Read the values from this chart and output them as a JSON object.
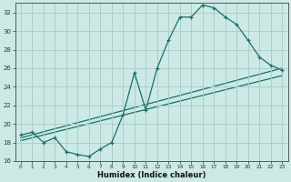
{
  "xlabel": "Humidex (Indice chaleur)",
  "bg_color": "#cce9e5",
  "grid_color": "#aacfcc",
  "line_color": "#1a7068",
  "xlim": [
    -0.5,
    23.5
  ],
  "ylim": [
    16,
    33
  ],
  "xticks": [
    0,
    1,
    2,
    3,
    4,
    5,
    6,
    7,
    8,
    9,
    10,
    11,
    12,
    13,
    14,
    15,
    16,
    17,
    18,
    19,
    20,
    21,
    22,
    23
  ],
  "yticks": [
    16,
    18,
    20,
    22,
    24,
    26,
    28,
    30,
    32
  ],
  "line1_x": [
    0,
    1,
    2,
    3,
    4,
    5,
    6,
    7,
    8,
    9,
    10,
    11,
    12,
    13,
    14,
    15,
    16,
    17,
    18,
    19,
    20,
    21,
    22,
    23
  ],
  "line1_y": [
    18.8,
    19.1,
    18.0,
    18.5,
    17.0,
    16.7,
    16.5,
    17.3,
    18.0,
    21.0,
    25.5,
    21.5,
    26.0,
    29.0,
    31.5,
    31.5,
    32.8,
    32.5,
    31.5,
    30.7,
    29.0,
    27.2,
    26.3,
    25.8
  ],
  "line2_x": [
    0,
    23
  ],
  "line2_y": [
    18.5,
    26.0
  ],
  "line3_x": [
    0,
    23
  ],
  "line3_y": [
    18.2,
    25.2
  ]
}
